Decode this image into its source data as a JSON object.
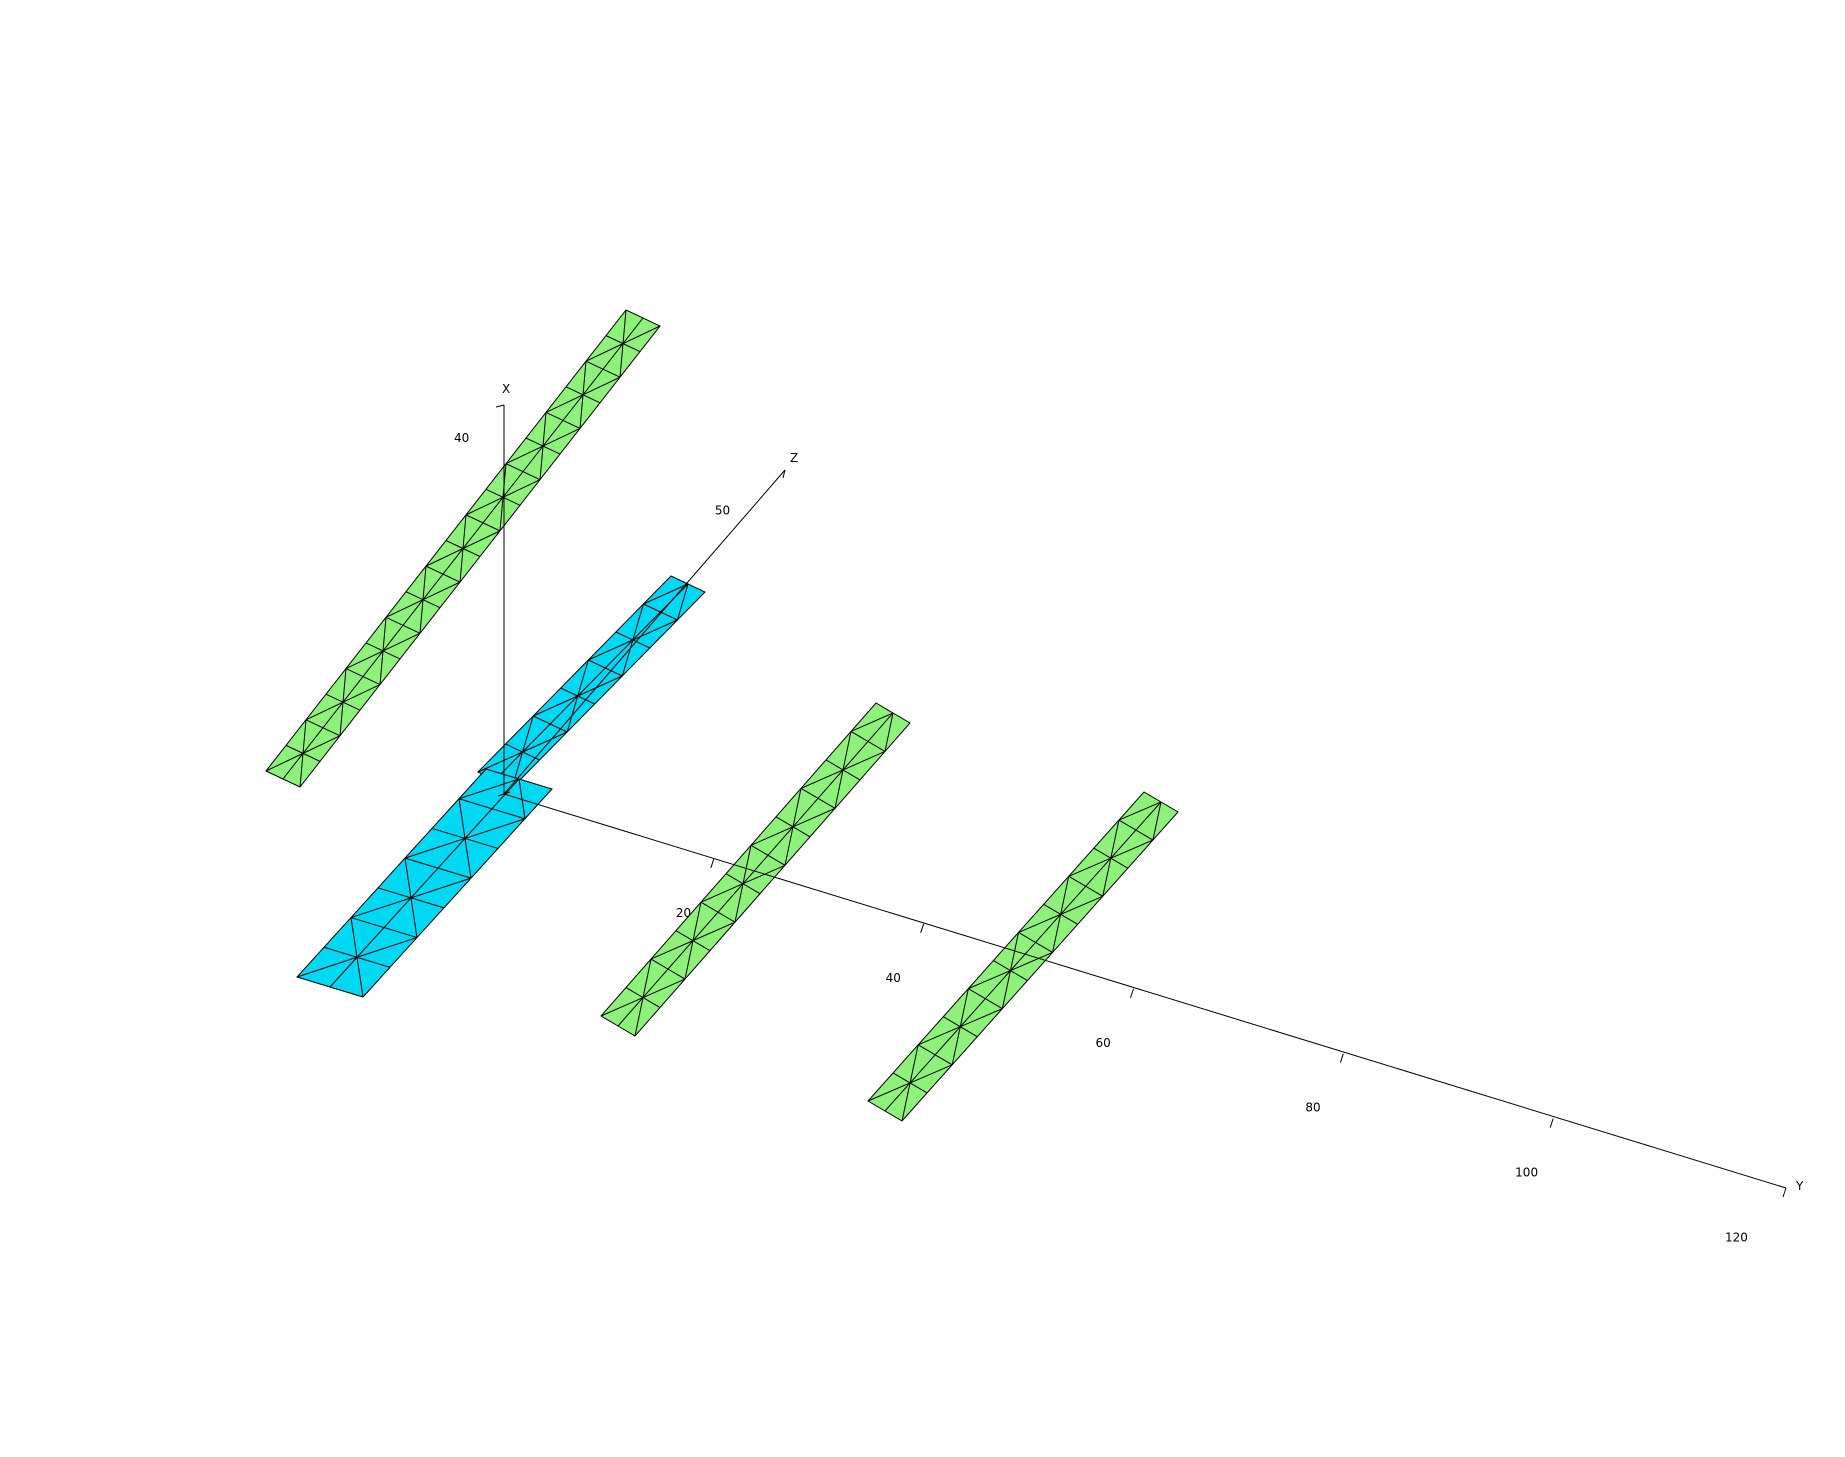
{
  "colors": {
    "background": "#ffffff",
    "green_panel": "#8ef27a",
    "cyan_panel": "#00d8f4",
    "mesh_line": "#000000",
    "axis_line": "#000000"
  },
  "axes": {
    "x": {
      "name": "X",
      "ticks": [
        {
          "value": 40,
          "label": "40"
        }
      ]
    },
    "y": {
      "name": "Y",
      "ticks": [
        {
          "value": 20,
          "label": "20"
        },
        {
          "value": 40,
          "label": "40"
        },
        {
          "value": 60,
          "label": "60"
        },
        {
          "value": 80,
          "label": "80"
        },
        {
          "value": 100,
          "label": "100"
        },
        {
          "value": 120,
          "label": "120"
        }
      ]
    },
    "z": {
      "name": "Z",
      "ticks": [
        {
          "value": 50,
          "label": "50"
        }
      ]
    }
  },
  "panels": [
    {
      "id": "panel-green-1",
      "color": "green",
      "rows": 18,
      "cols": 2
    },
    {
      "id": "panel-cyan-1",
      "color": "cyan",
      "rows": 7,
      "cols": 2
    },
    {
      "id": "panel-cyan-2",
      "color": "cyan",
      "rows": 7,
      "cols": 2
    },
    {
      "id": "panel-green-2",
      "color": "green",
      "rows": 11,
      "cols": 2
    },
    {
      "id": "panel-green-3",
      "color": "green",
      "rows": 11,
      "cols": 2
    }
  ]
}
